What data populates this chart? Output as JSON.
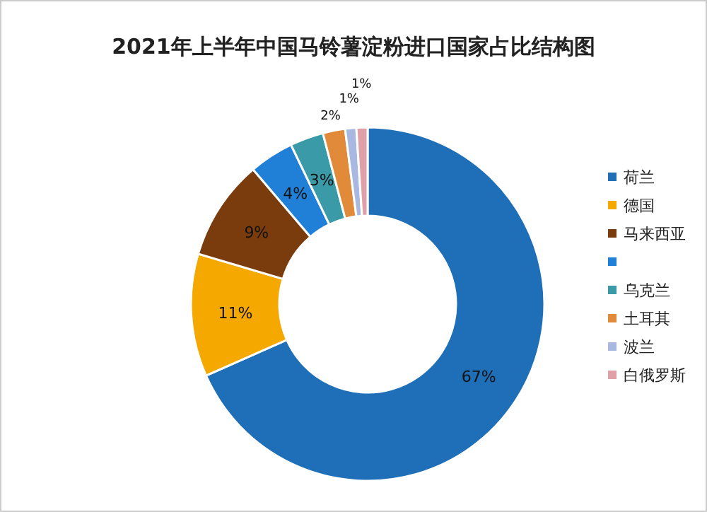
{
  "chart_data": {
    "type": "donut",
    "title": "2021年上半年中国马铃薯淀粉进口国家占比结构图",
    "categories": [
      "荷兰",
      "德国",
      "马来西亚",
      null,
      "乌克兰",
      "土耳其",
      "波兰",
      "白俄罗斯"
    ],
    "values": [
      67,
      11,
      9,
      4,
      3,
      2,
      1,
      1
    ],
    "colors": [
      "#1e6fb8",
      "#f5a800",
      "#7a3c0c",
      "#2080d8",
      "#3a9aa8",
      "#e08a3a",
      "#a8b8e0",
      "#e0a0a8"
    ],
    "value_labels": [
      "67%",
      "11%",
      "9%",
      "4%",
      "3%",
      "2%",
      "1%",
      "1%"
    ],
    "legend": "right"
  }
}
